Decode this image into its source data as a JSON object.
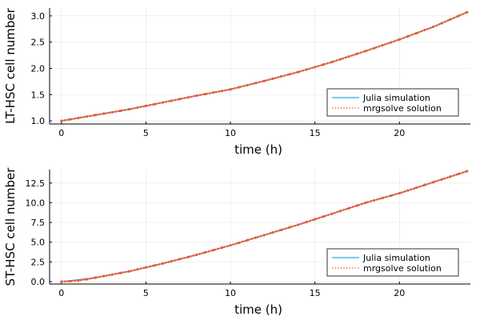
{
  "chart_data": [
    {
      "type": "line",
      "xlabel": "time (h)",
      "ylabel": "LT-HSC cell number",
      "xlim": [
        -0.7,
        24.2
      ],
      "ylim": [
        0.94,
        3.15
      ],
      "xticks": [
        0,
        5,
        10,
        15,
        20
      ],
      "xtick_labels": [
        "0",
        "5",
        "10",
        "15",
        "20"
      ],
      "yticks": [
        1.0,
        1.5,
        2.0,
        2.5,
        3.0
      ],
      "ytick_labels": [
        "1.0",
        "1.5",
        "2.0",
        "2.5",
        "3.0"
      ],
      "grid": true,
      "legend_position": "bottom-right",
      "series": [
        {
          "name": "Julia simulation",
          "style": "solid",
          "color": "#4fb5f2",
          "x": [
            0,
            2,
            4,
            6,
            8,
            10,
            12,
            14,
            16,
            18,
            20,
            22,
            24
          ],
          "y": [
            1.0,
            1.11,
            1.22,
            1.35,
            1.48,
            1.6,
            1.76,
            1.93,
            2.12,
            2.33,
            2.55,
            2.79,
            3.07
          ]
        },
        {
          "name": "mrgsolve solution",
          "style": "dotted",
          "color": "#e2603e",
          "x": [
            0,
            0.5,
            1,
            1.5,
            2,
            2.5,
            3,
            3.5,
            4,
            4.5,
            5,
            5.5,
            6,
            6.5,
            7,
            7.5,
            8,
            8.5,
            9,
            9.5,
            10,
            10.5,
            11,
            11.5,
            12,
            12.5,
            13,
            13.5,
            14,
            14.5,
            15,
            15.5,
            16,
            16.5,
            17,
            17.5,
            18,
            18.5,
            19,
            19.5,
            20,
            20.5,
            21,
            21.5,
            22,
            22.5,
            23,
            23.5,
            24
          ],
          "y": [
            1.0,
            1.027,
            1.054,
            1.082,
            1.11,
            1.137,
            1.164,
            1.192,
            1.22,
            1.252,
            1.285,
            1.317,
            1.35,
            1.382,
            1.415,
            1.447,
            1.48,
            1.51,
            1.54,
            1.57,
            1.6,
            1.64,
            1.68,
            1.72,
            1.76,
            1.803,
            1.845,
            1.888,
            1.93,
            1.977,
            2.025,
            2.072,
            2.12,
            2.172,
            2.225,
            2.277,
            2.33,
            2.385,
            2.44,
            2.495,
            2.55,
            2.61,
            2.67,
            2.73,
            2.79,
            2.86,
            2.93,
            3.0,
            3.07
          ]
        }
      ]
    },
    {
      "type": "line",
      "xlabel": "time (h)",
      "ylabel": "ST-HSC cell number",
      "xlim": [
        -0.7,
        24.2
      ],
      "ylim": [
        -0.3,
        14.2
      ],
      "xticks": [
        0,
        5,
        10,
        15,
        20
      ],
      "xtick_labels": [
        "0",
        "5",
        "10",
        "15",
        "20"
      ],
      "yticks": [
        0.0,
        2.5,
        5.0,
        7.5,
        10.0,
        12.5
      ],
      "ytick_labels": [
        "0.0",
        "2.5",
        "5.0",
        "7.5",
        "10.0",
        "12.5"
      ],
      "grid": true,
      "legend_position": "bottom-right",
      "series": [
        {
          "name": "Julia simulation",
          "style": "solid",
          "color": "#4fb5f2",
          "x": [
            0,
            2,
            4,
            6,
            8,
            10,
            12,
            14,
            16,
            18,
            20,
            22,
            24
          ],
          "y": [
            0.0,
            0.5,
            1.3,
            2.3,
            3.4,
            4.6,
            5.9,
            7.2,
            8.6,
            10.0,
            11.2,
            12.6,
            14.0
          ]
        },
        {
          "name": "mrgsolve solution",
          "style": "dotted",
          "color": "#e2603e",
          "x": [
            0,
            0.5,
            1,
            1.5,
            2,
            2.5,
            3,
            3.5,
            4,
            4.5,
            5,
            5.5,
            6,
            6.5,
            7,
            7.5,
            8,
            8.5,
            9,
            9.5,
            10,
            10.5,
            11,
            11.5,
            12,
            12.5,
            13,
            13.5,
            14,
            14.5,
            15,
            15.5,
            16,
            16.5,
            17,
            17.5,
            18,
            18.5,
            19,
            19.5,
            20,
            20.5,
            21,
            21.5,
            22,
            22.5,
            23,
            23.5,
            24
          ],
          "y": [
            0.0,
            0.06,
            0.15,
            0.3,
            0.5,
            0.7,
            0.9,
            1.1,
            1.3,
            1.55,
            1.8,
            2.05,
            2.3,
            2.575,
            2.85,
            3.125,
            3.4,
            3.7,
            4.0,
            4.3,
            4.6,
            4.925,
            5.25,
            5.575,
            5.9,
            6.225,
            6.55,
            6.875,
            7.2,
            7.55,
            7.9,
            8.25,
            8.6,
            8.95,
            9.3,
            9.65,
            10.0,
            10.3,
            10.6,
            10.9,
            11.2,
            11.55,
            11.9,
            12.25,
            12.6,
            12.95,
            13.3,
            13.65,
            14.0
          ]
        }
      ]
    }
  ]
}
